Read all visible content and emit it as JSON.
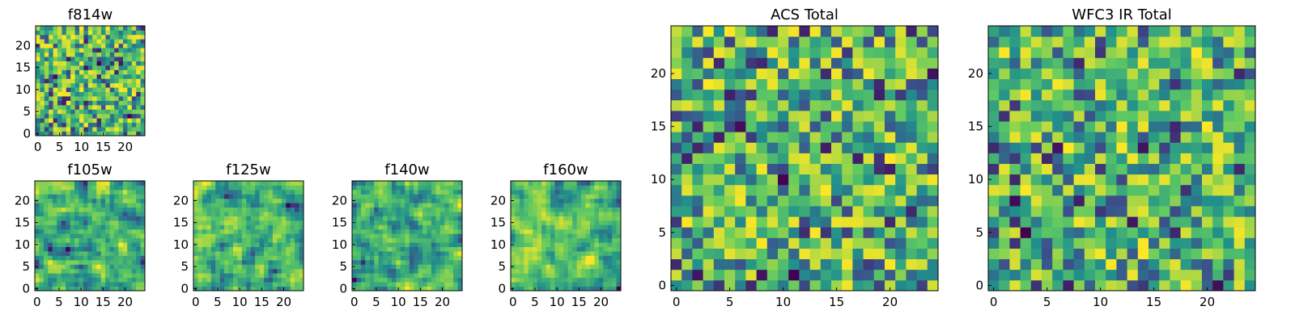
{
  "figure": {
    "description_type": "heatmap-grid"
  },
  "chart_data": [
    {
      "type": "heatmap",
      "title": "f814w",
      "grid_size": 25,
      "colormap": "viridis",
      "xticks": [
        "0",
        "5",
        "10",
        "15",
        "20"
      ],
      "yticks": [
        "0",
        "5",
        "10",
        "15",
        "20"
      ],
      "seed": 11,
      "smooth": 0
    },
    {
      "type": "heatmap",
      "title": "f105w",
      "grid_size": 25,
      "colormap": "viridis",
      "xticks": [
        "0",
        "5",
        "10",
        "15",
        "20"
      ],
      "yticks": [
        "0",
        "5",
        "10",
        "15",
        "20"
      ],
      "seed": 23,
      "smooth": 1
    },
    {
      "type": "heatmap",
      "title": "f125w",
      "grid_size": 25,
      "colormap": "viridis",
      "xticks": [
        "0",
        "5",
        "10",
        "15",
        "20"
      ],
      "yticks": [
        "0",
        "5",
        "10",
        "15",
        "20"
      ],
      "seed": 37,
      "smooth": 1
    },
    {
      "type": "heatmap",
      "title": "f140w",
      "grid_size": 25,
      "colormap": "viridis",
      "xticks": [
        "0",
        "5",
        "10",
        "15",
        "20"
      ],
      "yticks": [
        "0",
        "5",
        "10",
        "15",
        "20"
      ],
      "seed": 41,
      "smooth": 1
    },
    {
      "type": "heatmap",
      "title": "f160w",
      "grid_size": 25,
      "colormap": "viridis",
      "xticks": [
        "0",
        "5",
        "10",
        "15",
        "20"
      ],
      "yticks": [
        "0",
        "5",
        "10",
        "15",
        "20"
      ],
      "seed": 53,
      "smooth": 1
    },
    {
      "type": "heatmap",
      "title": "ACS Total",
      "grid_size": 25,
      "colormap": "viridis",
      "xticks": [
        "0",
        "5",
        "10",
        "15",
        "20"
      ],
      "yticks": [
        "0",
        "5",
        "10",
        "15",
        "20"
      ],
      "seed": 67,
      "smooth": 0
    },
    {
      "type": "heatmap",
      "title": "WFC3 IR Total",
      "grid_size": 25,
      "colormap": "viridis",
      "xticks": [
        "0",
        "5",
        "10",
        "15",
        "20"
      ],
      "yticks": [
        "0",
        "5",
        "10",
        "15",
        "20"
      ],
      "seed": 79,
      "smooth": 0
    }
  ],
  "colors": {
    "viridis_stops": [
      "#440154",
      "#3b528b",
      "#21918c",
      "#5ec962",
      "#fde725"
    ]
  }
}
